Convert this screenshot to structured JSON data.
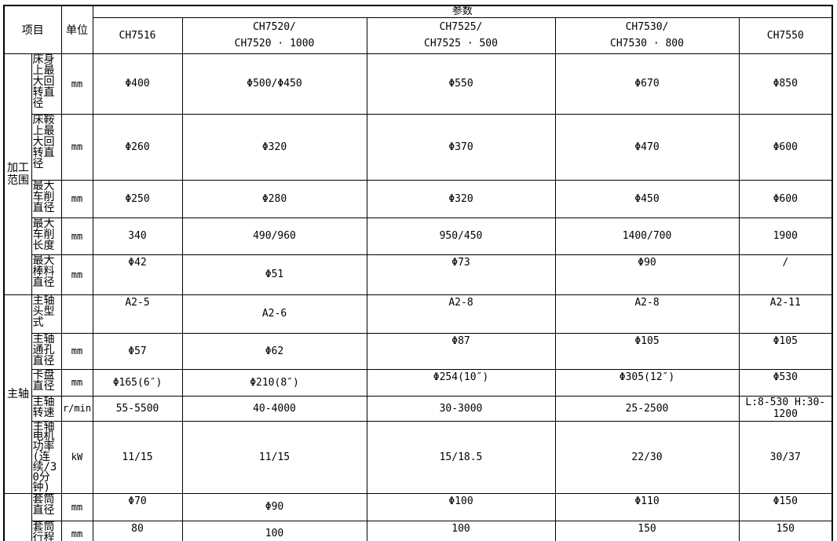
{
  "table": {
    "header": {
      "item_label": "项目",
      "unit_label": "单位",
      "params_label": "参数",
      "models": [
        "CH7516",
        "CH7520/\nCH7520 · 1000",
        "CH7525/\nCH7525 · 500",
        "CH7530/\nCH7530 · 800",
        "CH7550"
      ]
    },
    "groups": [
      {
        "label": "加工范围",
        "row_start": 0,
        "row_count": 5
      },
      {
        "label": "主轴",
        "row_start": 5,
        "row_count": 5
      },
      {
        "label": "",
        "row_start": 10,
        "row_count": 2
      }
    ],
    "rows": [
      {
        "item": "床身上最大回转直径",
        "unit": "mm",
        "values": [
          "Φ400",
          "Φ500/Φ450",
          "Φ550",
          "Φ670",
          "Φ850"
        ]
      },
      {
        "item": "床鞍上最大回转直径",
        "unit": "mm",
        "values": [
          "Φ260",
          "Φ320",
          "Φ370",
          "Φ470",
          "Φ600"
        ]
      },
      {
        "item": "最大车削直径",
        "unit": "mm",
        "values": [
          "Φ250",
          "Φ280",
          "Φ320",
          "Φ450",
          "Φ600"
        ]
      },
      {
        "item": "最大车削长度",
        "unit": "mm",
        "values": [
          "340",
          "490/960",
          "950/450",
          "1400/700",
          "1900"
        ]
      },
      {
        "item": "最大棒料直径",
        "unit": "mm",
        "values": [
          "Φ42",
          "Φ51",
          "Φ73",
          "Φ90",
          "/"
        ]
      },
      {
        "item": "主轴头型式",
        "unit": "",
        "values": [
          "A2-5",
          "A2-6",
          "A2-8",
          "A2-8",
          "A2-11"
        ]
      },
      {
        "item": "主轴通孔直径",
        "unit": "mm",
        "values": [
          "Φ57",
          "Φ62",
          "Φ87",
          "Φ105",
          "Φ105"
        ]
      },
      {
        "item": "卡盘直径",
        "unit": "mm",
        "values": [
          "Φ165(6″)",
          "Φ210(8″)",
          "Φ254(10″)",
          "Φ305(12″)",
          "Φ530"
        ]
      },
      {
        "item": "主轴转速",
        "unit": "r/min",
        "values": [
          "55-5500",
          "40-4000",
          "30-3000",
          "25-2500",
          "L:8-530 H:30-1200"
        ]
      },
      {
        "item": "主轴电机功率(连续/30分钟)",
        "unit": "kW",
        "values": [
          "11/15",
          "11/15",
          "15/18.5",
          "22/30",
          "30/37"
        ]
      },
      {
        "item": "套筒直径",
        "unit": "mm",
        "values": [
          "Φ70",
          "Φ90",
          "Φ100",
          "Φ110",
          "Φ150"
        ]
      },
      {
        "item": "套筒行程",
        "unit": "mm",
        "values": [
          "80",
          "100",
          "100",
          "150",
          "150"
        ]
      }
    ]
  }
}
